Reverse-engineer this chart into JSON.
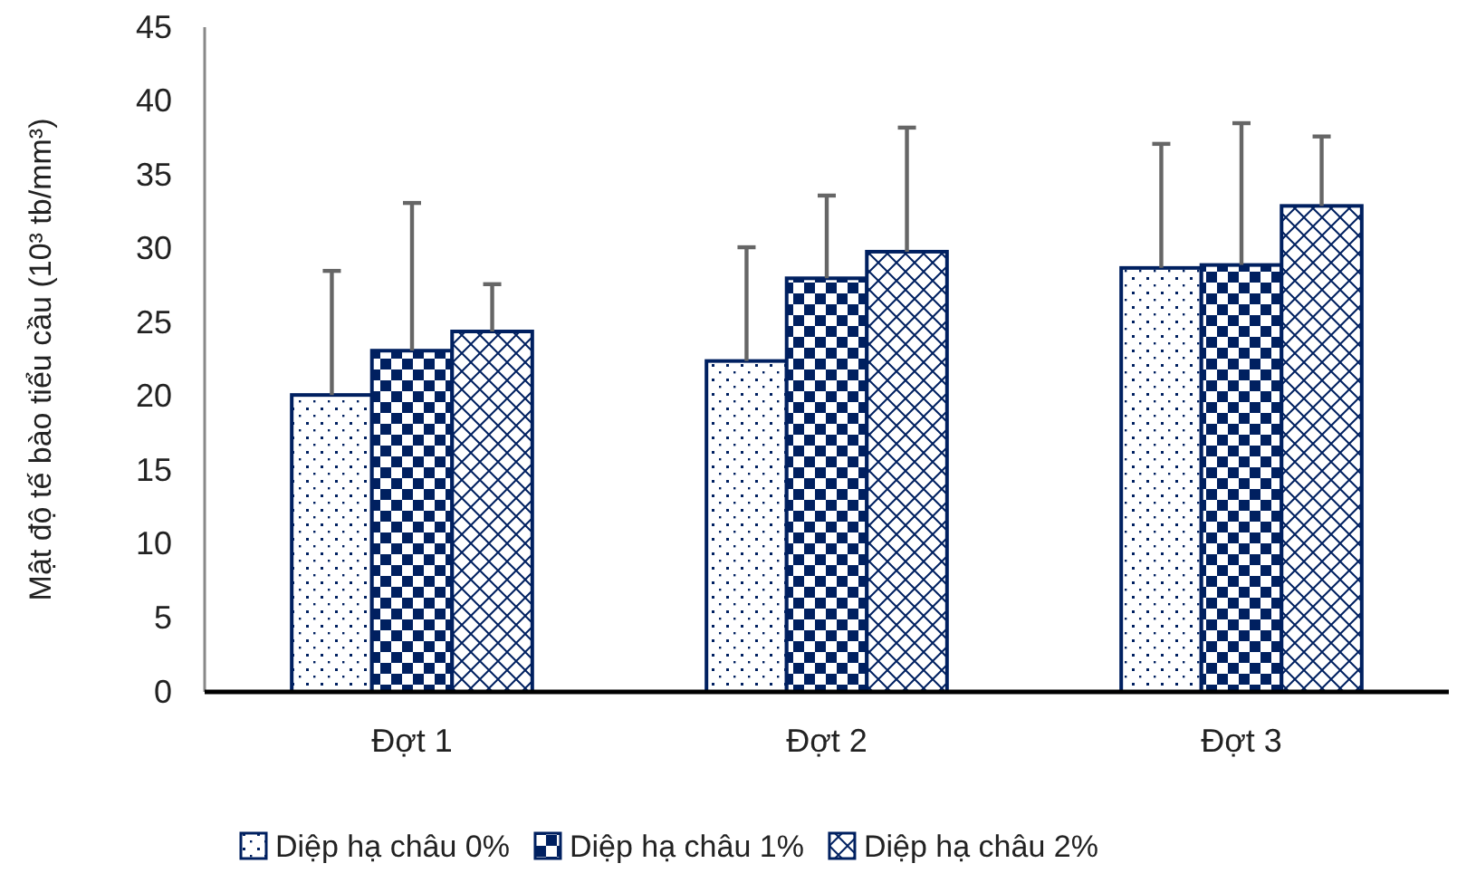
{
  "chart_data": {
    "type": "bar",
    "ylabel": "Mật độ tế bào tiểu cầu (10³ tb/mm³)",
    "categories": [
      "Đợt 1",
      "Đợt 2",
      "Đợt 3"
    ],
    "series": [
      {
        "name": "Diệp hạ châu 0%",
        "color": "#002060",
        "values": [
          20.1,
          22.4,
          28.7
        ],
        "errors": [
          [
            20.1,
            28.5
          ],
          [
            22.4,
            30.1
          ],
          [
            28.7,
            37.1
          ]
        ]
      },
      {
        "name": "Diệp hạ châu 1%",
        "color": "#002060",
        "values": [
          23.1,
          28.0,
          28.9
        ],
        "errors": [
          [
            23.1,
            33.1
          ],
          [
            28.0,
            33.6
          ],
          [
            28.9,
            38.5
          ]
        ]
      },
      {
        "name": "Diệp hạ châu 2%",
        "color": "#002060",
        "values": [
          24.4,
          29.8,
          32.9
        ],
        "errors": [
          [
            24.4,
            27.6
          ],
          [
            29.8,
            38.2
          ],
          [
            32.9,
            37.6
          ]
        ]
      }
    ],
    "ylim": [
      0,
      45
    ],
    "yticks": [
      0,
      5,
      10,
      15,
      20,
      25,
      30,
      35,
      40,
      45
    ],
    "grid": false,
    "legend": "bottom"
  }
}
